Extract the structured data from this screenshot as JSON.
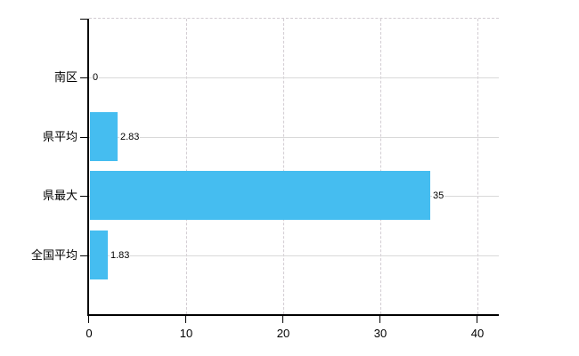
{
  "chart_data": {
    "type": "bar",
    "orientation": "horizontal",
    "title": "",
    "categories": [
      "南区",
      "県平均",
      "県最大",
      "全国平均"
    ],
    "values": [
      0,
      2.83,
      35,
      1.83
    ],
    "value_labels": [
      "0",
      "2.83",
      "35",
      "1.83"
    ],
    "x_ticks": [
      0,
      10,
      20,
      30,
      40
    ],
    "x_tick_labels": [
      "0",
      "10",
      "20",
      "30",
      "40"
    ],
    "xlim": [
      0,
      42.2
    ],
    "xlabel": "",
    "ylabel": "",
    "grid": true,
    "gridline_horizontal_style": "solid",
    "gridline_vertical_style": "dashed",
    "legend": "none",
    "colors": {
      "bar": "#45bdf0",
      "grid_solid": "#d9d9d9",
      "grid_dashed": "#d2ccd2",
      "axis": "#000000",
      "text": "#000000",
      "background": "#ffffff"
    }
  }
}
